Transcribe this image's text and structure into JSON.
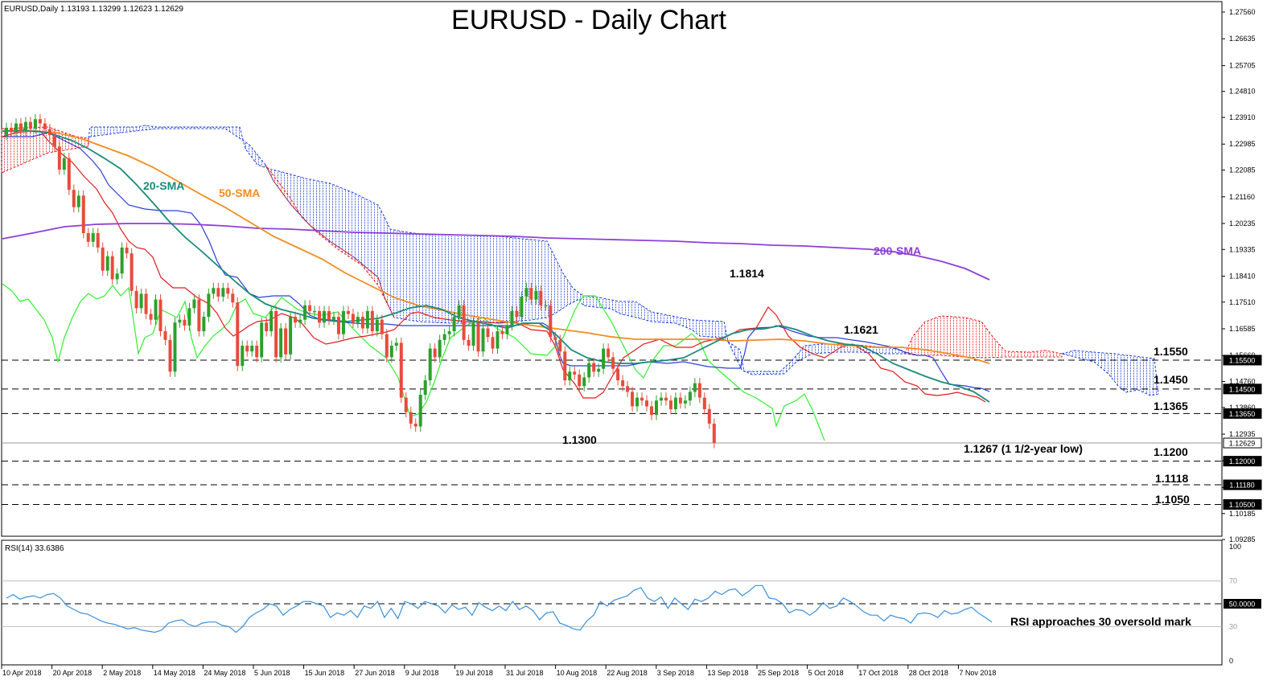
{
  "header": {
    "symbol_info": "EURUSD,Daily  1.13193 1.13299 1.12623 1.12629",
    "title": "EURUSD - Daily Chart"
  },
  "colors": {
    "bull": "#2ca02c",
    "bear": "#e74c3c",
    "sma20": "#1a8a7a",
    "sma50": "#f28c1e",
    "sma200": "#8e3fd8",
    "tenkan": "#e31a1c",
    "kijun": "#2b3fd6",
    "chikou": "#33ee33",
    "cloud_bull": "#1f3fe0",
    "cloud_bear": "#e31a1c",
    "rsi": "#3a8fdb"
  },
  "chart_data": [
    {
      "type": "candlestick",
      "title": "EURUSD - Daily Chart",
      "y_axis_ticks": [
        "1.27560",
        "1.26635",
        "1.25705",
        "1.24810",
        "1.23910",
        "1.22985",
        "1.22085",
        "1.21160",
        "1.20235",
        "1.19335",
        "1.18410",
        "1.17510",
        "1.16585",
        "1.15660",
        "1.14760",
        "1.13860",
        "1.12935",
        "1.12010",
        "1.11085",
        "1.10185",
        "1.09285"
      ],
      "price_labels": [
        "1.15500",
        "1.14500",
        "1.13650",
        "1.12629",
        "1.12000",
        "1.11180",
        "1.10500"
      ],
      "x_axis_labels": [
        "10 Apr 2018",
        "20 Apr 2018",
        "2 May 2018",
        "14 May 2018",
        "24 May 2018",
        "5 Jun 2018",
        "15 Jun 2018",
        "27 Jun 2018",
        "9 Jul 2018",
        "19 Jul 2018",
        "31 Jul 2018",
        "10 Aug 2018",
        "22 Aug 2018",
        "3 Sep 2018",
        "13 Sep 2018",
        "25 Sep 2018",
        "5 Oct 2018",
        "17 Oct 2018",
        "28 Oct 2018",
        "7 Nov 2018"
      ],
      "ylim": [
        1.0905,
        1.2785
      ],
      "close_series": [
        1.2355,
        1.234,
        1.237,
        1.2345,
        1.2375,
        1.2352,
        1.2385,
        1.237,
        1.235,
        1.233,
        1.229,
        1.221,
        1.225,
        1.214,
        1.208,
        1.212,
        1.199,
        1.196,
        1.199,
        1.194,
        1.186,
        1.191,
        1.183,
        1.185,
        1.194,
        1.192,
        1.179,
        1.173,
        1.178,
        1.171,
        1.169,
        1.176,
        1.165,
        1.162,
        1.151,
        1.168,
        1.169,
        1.167,
        1.173,
        1.176,
        1.165,
        1.17,
        1.178,
        1.18,
        1.177,
        1.18,
        1.178,
        1.175,
        1.153,
        1.16,
        1.158,
        1.16,
        1.156,
        1.168,
        1.165,
        1.172,
        1.156,
        1.166,
        1.157,
        1.17,
        1.168,
        1.169,
        1.174,
        1.172,
        1.172,
        1.168,
        1.172,
        1.169,
        1.17,
        1.164,
        1.172,
        1.171,
        1.168,
        1.17,
        1.166,
        1.172,
        1.165,
        1.169,
        1.164,
        1.156,
        1.16,
        1.161,
        1.142,
        1.137,
        1.133,
        1.132,
        1.143,
        1.148,
        1.159,
        1.156,
        1.162,
        1.164,
        1.165,
        1.17,
        1.174,
        1.162,
        1.16,
        1.168,
        1.158,
        1.166,
        1.163,
        1.159,
        1.165,
        1.164,
        1.167,
        1.172,
        1.17,
        1.177,
        1.18,
        1.176,
        1.179,
        1.174,
        1.174,
        1.163,
        1.162,
        1.158,
        1.148,
        1.151,
        1.15,
        1.146,
        1.149,
        1.154,
        1.151,
        1.152,
        1.159,
        1.156,
        1.152,
        1.148,
        1.146,
        1.144,
        1.139,
        1.142,
        1.141,
        1.139,
        1.136,
        1.141,
        1.142,
        1.141,
        1.138,
        1.142,
        1.14,
        1.141,
        1.144,
        1.147,
        1.142,
        1.138,
        1.133,
        1.12629
      ],
      "sma200_series": [
        1.1992,
        1.2005,
        1.202,
        1.2032,
        1.2038,
        1.2038,
        1.2034,
        1.203,
        1.2028,
        1.202,
        1.201,
        1.2002,
        1.1998,
        1.1994,
        1.1988,
        1.198,
        1.1968,
        1.195,
        1.193,
        1.1905,
        1.1875
      ],
      "annotations": [
        "1.1814",
        "1.1621",
        "1.1300",
        "1.1267 (1 1/2-year low)",
        "1.1550",
        "1.1450",
        "1.1365",
        "1.1200",
        "1.1118",
        "1.1050",
        "20-SMA",
        "50-SMA",
        "200-SMA"
      ]
    },
    {
      "type": "line",
      "title": "RSI(14) 33.6386",
      "ylim": [
        0,
        100
      ],
      "y_axis_ticks": [
        "100",
        "70",
        "50.0000",
        "30",
        "0"
      ],
      "levels": [
        70,
        50,
        30
      ],
      "values": [
        55,
        58,
        54,
        56,
        57,
        55,
        58,
        59,
        55,
        48,
        45,
        42,
        41,
        38,
        35,
        33,
        32,
        30,
        28,
        29,
        27,
        26,
        25,
        27,
        33,
        35,
        36,
        32,
        30,
        33,
        34,
        34,
        31,
        30,
        25,
        30,
        38,
        42,
        45,
        50,
        48,
        40,
        45,
        48,
        52,
        52,
        50,
        48,
        38,
        42,
        40,
        44,
        38,
        48,
        46,
        52,
        38,
        46,
        37,
        52,
        50,
        46,
        52,
        50,
        48,
        42,
        49,
        45,
        47,
        40,
        51,
        47,
        44,
        48,
        44,
        52,
        45,
        48,
        44,
        36,
        42,
        43,
        33,
        31,
        28,
        27,
        35,
        40,
        52,
        48,
        53,
        55,
        57,
        62,
        64,
        55,
        52,
        56,
        46,
        55,
        50,
        45,
        54,
        52,
        55,
        61,
        58,
        62,
        63,
        57,
        61,
        66,
        66,
        55,
        54,
        50,
        42,
        45,
        44,
        40,
        44,
        51,
        46,
        48,
        55,
        52,
        48,
        43,
        40,
        40,
        35,
        40,
        38,
        37,
        33,
        41,
        42,
        41,
        38,
        44,
        41,
        42,
        45,
        47,
        42,
        38,
        34
      ],
      "annotation": "RSI approaches 30 oversold mark"
    }
  ]
}
